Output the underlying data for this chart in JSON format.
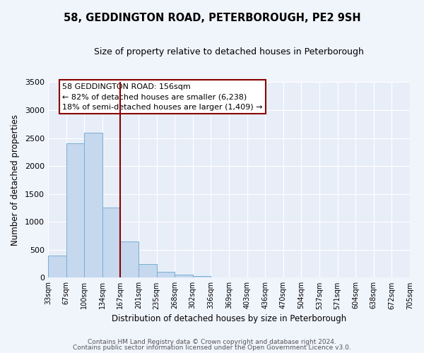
{
  "title": "58, GEDDINGTON ROAD, PETERBOROUGH, PE2 9SH",
  "subtitle": "Size of property relative to detached houses in Peterborough",
  "xlabel": "Distribution of detached houses by size in Peterborough",
  "ylabel": "Number of detached properties",
  "bar_values": [
    400,
    2400,
    2600,
    1250,
    650,
    250,
    100,
    50,
    30,
    10,
    5,
    2,
    0,
    0,
    0,
    0,
    0,
    0,
    0,
    0
  ],
  "bar_labels": [
    "33sqm",
    "67sqm",
    "100sqm",
    "134sqm",
    "167sqm",
    "201sqm",
    "235sqm",
    "268sqm",
    "302sqm",
    "336sqm",
    "369sqm",
    "403sqm",
    "436sqm",
    "470sqm",
    "504sqm",
    "537sqm",
    "571sqm",
    "604sqm",
    "638sqm",
    "672sqm",
    "705sqm"
  ],
  "bar_color": "#c5d8ee",
  "bar_edge_color": "#7aafd4",
  "vline_color": "#8B0000",
  "annotation_box_color": "#8B0000",
  "annotation_line1": "58 GEDDINGTON ROAD: 156sqm",
  "annotation_line2": "← 82% of detached houses are smaller (6,238)",
  "annotation_line3": "18% of semi-detached houses are larger (1,409) →",
  "ylim": [
    0,
    3500
  ],
  "yticks": [
    0,
    500,
    1000,
    1500,
    2000,
    2500,
    3000,
    3500
  ],
  "footer_line1": "Contains HM Land Registry data © Crown copyright and database right 2024.",
  "footer_line2": "Contains public sector information licensed under the Open Government Licence v3.0.",
  "background_color": "#f0f4fb",
  "plot_bg_color": "#e8eef8"
}
